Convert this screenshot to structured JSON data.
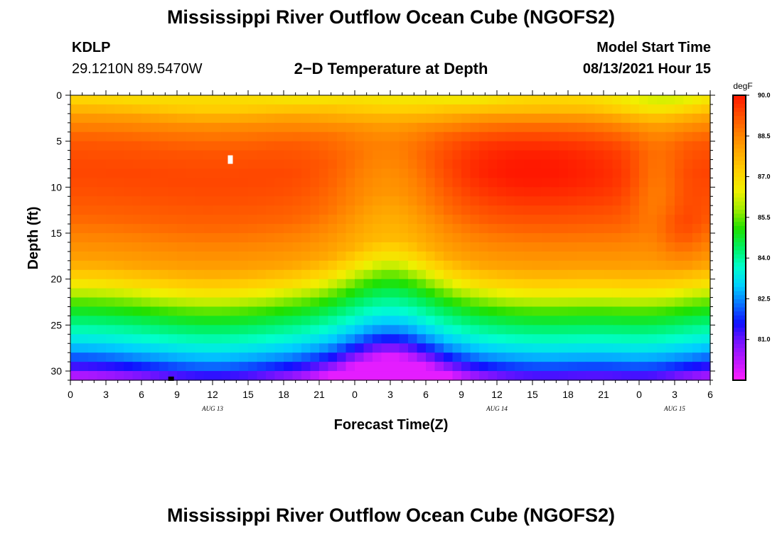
{
  "header": {
    "title": "Mississippi River Outflow Ocean Cube (NGOFS2)",
    "station": "KDLP",
    "coords": "29.1210N  89.5470W",
    "subtitle": "2−D Temperature at Depth",
    "model_label": "Model Start Time",
    "model_time": "08/13/2021 Hour 15"
  },
  "footer": {
    "title": "Mississippi River Outflow Ocean Cube (NGOFS2)"
  },
  "colors": {
    "scale": [
      "#ff20ff",
      "#c018ff",
      "#7a14ff",
      "#1010ff",
      "#0a70ff",
      "#00d0ff",
      "#00ffcc",
      "#00f060",
      "#20e000",
      "#a0ec00",
      "#f0f000",
      "#ffd000",
      "#ffaa00",
      "#ff8000",
      "#ff4d00",
      "#ff1800"
    ]
  },
  "chart_data": {
    "type": "heatmap",
    "title": "2−D Temperature at Depth",
    "xlabel": "Forecast Time(Z)",
    "ylabel": "Depth (ft)",
    "xlim": [
      0,
      54
    ],
    "ylim": [
      31,
      0
    ],
    "x_ticks": [
      {
        "pos": 0,
        "label": "0"
      },
      {
        "pos": 3,
        "label": "3"
      },
      {
        "pos": 6,
        "label": "6"
      },
      {
        "pos": 9,
        "label": "9"
      },
      {
        "pos": 12,
        "label": "12"
      },
      {
        "pos": 15,
        "label": "15"
      },
      {
        "pos": 18,
        "label": "18"
      },
      {
        "pos": 21,
        "label": "21"
      },
      {
        "pos": 24,
        "label": "0"
      },
      {
        "pos": 27,
        "label": "3"
      },
      {
        "pos": 30,
        "label": "6"
      },
      {
        "pos": 33,
        "label": "9"
      },
      {
        "pos": 36,
        "label": "12"
      },
      {
        "pos": 39,
        "label": "15"
      },
      {
        "pos": 42,
        "label": "18"
      },
      {
        "pos": 45,
        "label": "21"
      },
      {
        "pos": 48,
        "label": "0"
      },
      {
        "pos": 51,
        "label": "3"
      },
      {
        "pos": 54,
        "label": "6"
      }
    ],
    "date_labels": [
      {
        "pos": 12,
        "label": "AUG 13"
      },
      {
        "pos": 36,
        "label": "AUG 14"
      },
      {
        "pos": 51,
        "label": "AUG 15"
      }
    ],
    "y_ticks": [
      {
        "pos": 0,
        "label": "0"
      },
      {
        "pos": 5,
        "label": "5"
      },
      {
        "pos": 10,
        "label": "10"
      },
      {
        "pos": 15,
        "label": "15"
      },
      {
        "pos": 20,
        "label": "20"
      },
      {
        "pos": 25,
        "label": "25"
      },
      {
        "pos": 30,
        "label": "30"
      }
    ],
    "colorbar": {
      "units": "degF",
      "min": 79.5,
      "max": 90.0,
      "ticks": [
        {
          "value": 90.0,
          "label": "90.0"
        },
        {
          "value": 88.5,
          "label": "88.5"
        },
        {
          "value": 87.0,
          "label": "87.0"
        },
        {
          "value": 85.5,
          "label": "85.5"
        },
        {
          "value": 84.0,
          "label": "84.0"
        },
        {
          "value": 82.5,
          "label": "82.5"
        },
        {
          "value": 81.0,
          "label": "81.0"
        }
      ]
    },
    "field_description_points": {
      "note_max": {
        "time": 13.5,
        "depth": 7,
        "value": 90.0,
        "marker": "white"
      },
      "note_bottom": {
        "time": 8.5,
        "depth": 30.8,
        "value": 79.5,
        "marker": "black"
      }
    },
    "depth_profile_degF": {
      "depths": [
        0,
        2,
        5,
        8,
        10,
        13,
        15,
        18,
        20,
        22,
        24,
        26,
        28,
        30,
        31
      ],
      "typical": [
        87.8,
        88.6,
        89.2,
        89.4,
        89.3,
        89.0,
        88.6,
        88.0,
        87.0,
        85.6,
        84.5,
        83.6,
        82.5,
        80.8,
        79.8
      ]
    }
  }
}
